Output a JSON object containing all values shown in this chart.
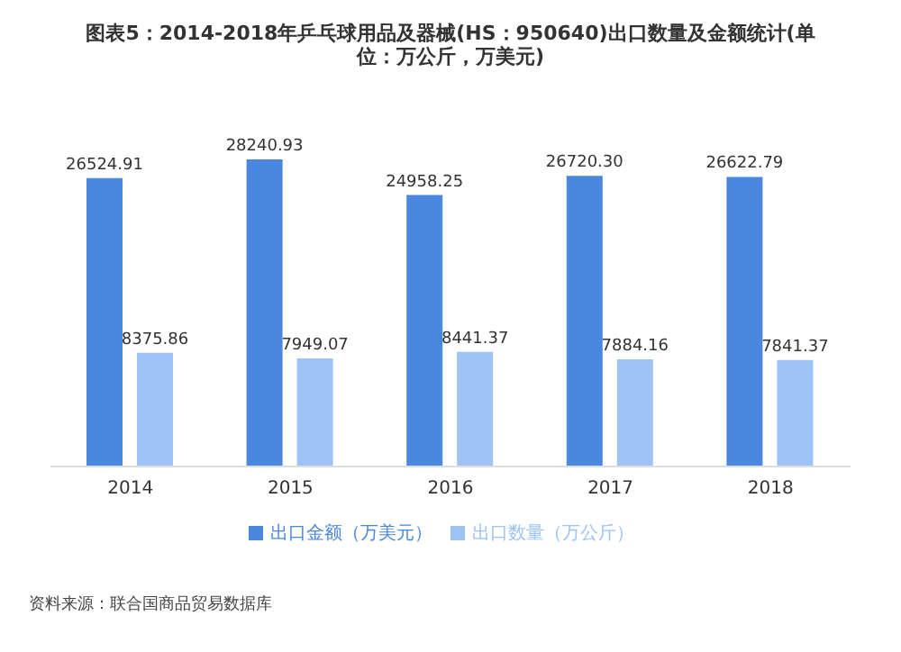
{
  "chart_data": {
    "type": "bar",
    "title": "图表5：2014-2018年乒乓球用品及器械(HS：950640)出口数量及金额统计(单位：万公斤，万美元)",
    "categories": [
      "2014",
      "2015",
      "2016",
      "2017",
      "2018"
    ],
    "series": [
      {
        "name": "出口金额（万美元）",
        "color": "#4a88e0",
        "values": [
          26524.91,
          28240.93,
          24958.25,
          26720.3,
          26622.79
        ],
        "value_labels": [
          "26524.91",
          "28240.93",
          "24958.25",
          "26720.30",
          "26622.79"
        ]
      },
      {
        "name": "出口数量（万公斤）",
        "color": "#9dc3f5",
        "axis": "y2",
        "values": [
          8375.86,
          7949.07,
          8441.37,
          7884.16,
          7841.37
        ]
      }
    ],
    "data_labels": true,
    "legend": "bottom",
    "annotations": [
      "资料来源：联合国商品贸易数据库"
    ]
  }
}
